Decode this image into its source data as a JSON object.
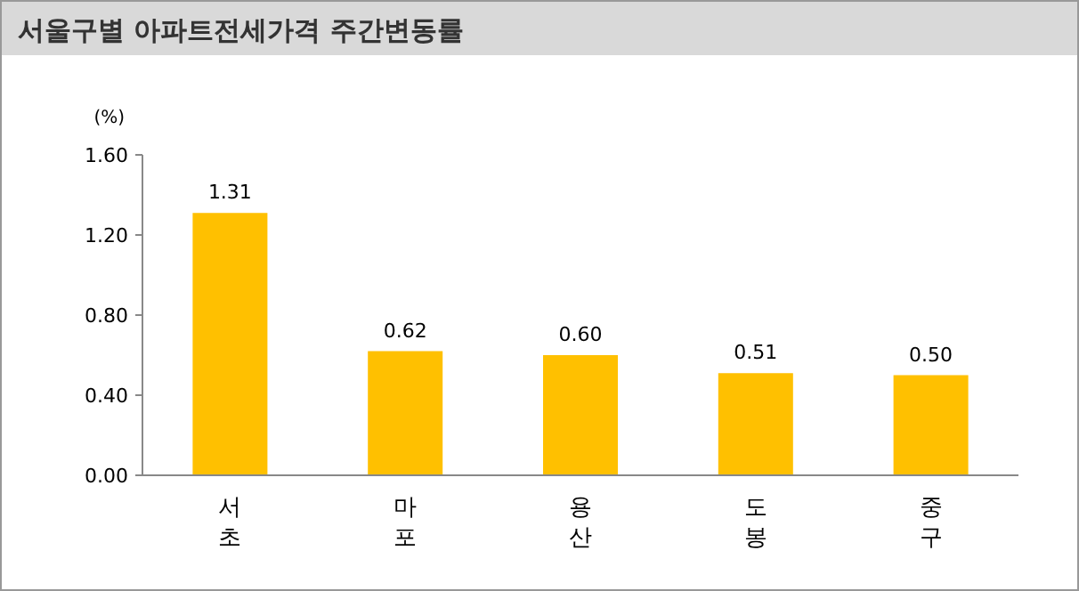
{
  "chart_data": {
    "type": "bar",
    "title": "서울구별 아파트전세가격 주간변동률",
    "ylabel": "(%)",
    "categories": [
      "서초",
      "마포",
      "용산",
      "도봉",
      "중구"
    ],
    "values": [
      1.31,
      0.62,
      0.6,
      0.51,
      0.5
    ],
    "value_labels": [
      "1.31",
      "0.62",
      "0.60",
      "0.51",
      "0.50"
    ],
    "color": "#ffc000",
    "ylim": [
      0,
      1.6
    ],
    "yticks": [
      {
        "value": 0,
        "label": "0.00"
      },
      {
        "value": 0.4,
        "label": "0.40"
      },
      {
        "value": 0.8,
        "label": "0.80"
      },
      {
        "value": 1.2,
        "label": "1.20"
      },
      {
        "value": 1.6,
        "label": "1.60"
      }
    ],
    "grid": false
  }
}
